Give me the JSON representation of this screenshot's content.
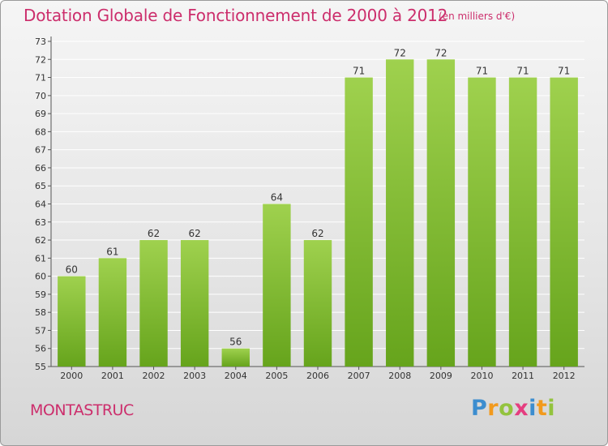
{
  "title": "Dotation Globale de Fonctionnement de 2000 à 2012",
  "unit_note": "(en milliers d'€)",
  "location": "MONTASTRUC",
  "brand": {
    "letters": [
      "P",
      "r",
      "o",
      "x",
      "i",
      "t",
      "i"
    ]
  },
  "colors": {
    "title": "#cc2e6c",
    "bar_light": "#9fd14e",
    "bar_dark": "#66a41c",
    "grid": "#ffffff"
  },
  "chart_data": {
    "type": "bar",
    "title": "Dotation Globale de Fonctionnement de 2000 à 2012",
    "unit": "(en milliers d'€)",
    "categories": [
      "2000",
      "2001",
      "2002",
      "2003",
      "2004",
      "2005",
      "2006",
      "2007",
      "2008",
      "2009",
      "2010",
      "2011",
      "2012"
    ],
    "values": [
      60,
      61,
      62,
      62,
      56,
      64,
      62,
      71,
      72,
      72,
      71,
      71,
      71
    ],
    "ylim": [
      55,
      73
    ],
    "yticks": [
      55,
      56,
      57,
      58,
      59,
      60,
      61,
      62,
      63,
      64,
      65,
      66,
      67,
      68,
      69,
      70,
      71,
      72,
      73
    ],
    "grid": true,
    "xlabel": "",
    "ylabel": ""
  }
}
